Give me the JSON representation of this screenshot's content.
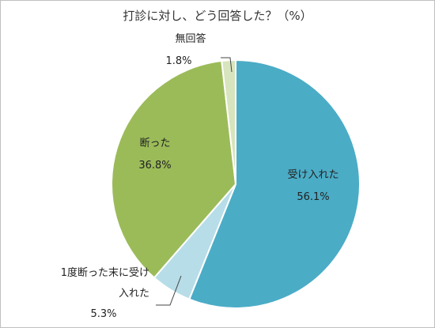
{
  "chart_data": {
    "type": "pie",
    "title": "打診に対し、どう回答した？（%）",
    "categories": [
      "受け入れた",
      "1度断った末に受け入れた",
      "断った",
      "無回答"
    ],
    "values": [
      56.1,
      5.3,
      36.8,
      1.8
    ],
    "value_labels": [
      "56.1%",
      "5.3%",
      "36.8%",
      "1.8%"
    ],
    "colors": [
      "#4bacc6",
      "#b7dde8",
      "#9bbb59",
      "#d7e4bd"
    ]
  }
}
